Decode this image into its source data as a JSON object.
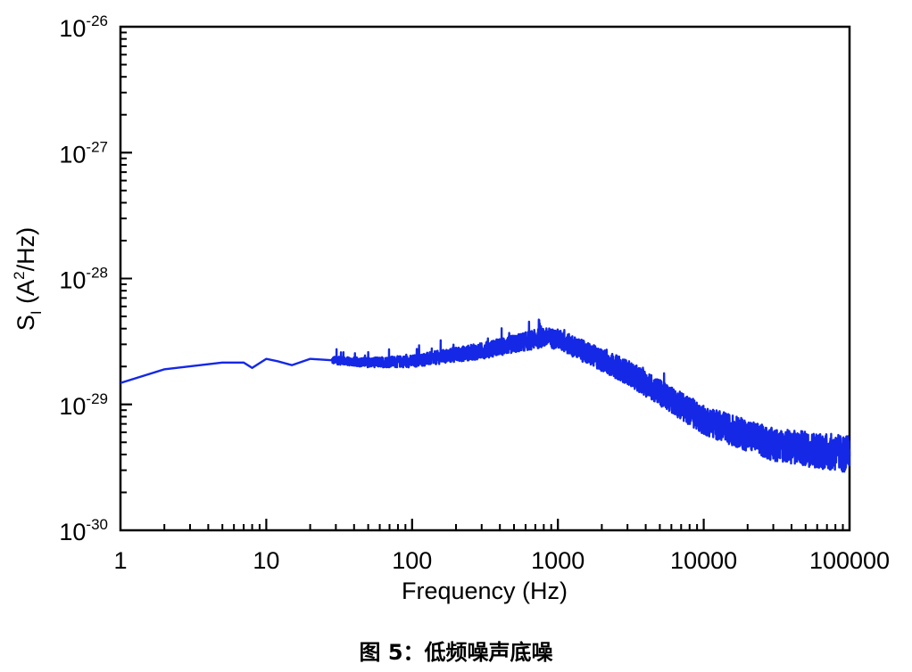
{
  "chart_data": {
    "type": "line",
    "xlabel": "Frequency (Hz)",
    "ylabel": {
      "main": "S",
      "sub": "I",
      "unit_pre": " (A",
      "unit_sup": "2",
      "unit_post": "/Hz)"
    },
    "x_scale": "log",
    "y_scale": "log",
    "xlim": [
      1,
      100000
    ],
    "ylim": [
      1e-30,
      1e-26
    ],
    "x_ticks": [
      {
        "value": 1,
        "label": "1"
      },
      {
        "value": 10,
        "label": "10"
      },
      {
        "value": 100,
        "label": "100"
      },
      {
        "value": 1000,
        "label": "1000"
      },
      {
        "value": 10000,
        "label": "10000"
      },
      {
        "value": 100000,
        "label": "100000"
      }
    ],
    "y_ticks": [
      {
        "value": 1e-26,
        "base": "10",
        "exp": "-26"
      },
      {
        "value": 1e-27,
        "base": "10",
        "exp": "-27"
      },
      {
        "value": 1e-28,
        "base": "10",
        "exp": "-28"
      },
      {
        "value": 1e-29,
        "base": "10",
        "exp": "-29"
      },
      {
        "value": 1e-30,
        "base": "10",
        "exp": "-30"
      }
    ],
    "grid": false,
    "line_color": "#1428e6",
    "series": [
      {
        "x": [
          1,
          2,
          5,
          7,
          8,
          10,
          12,
          15,
          20,
          50,
          100,
          300,
          800,
          1000,
          3000,
          10000,
          30000,
          100000
        ],
        "y": [
          1.48e-29,
          1.9e-29,
          2.15e-29,
          2.15e-29,
          1.95e-29,
          2.3e-29,
          2.2e-29,
          2.05e-29,
          2.3e-29,
          2.15e-29,
          2.2e-29,
          2.66e-29,
          3.4e-29,
          3.3e-29,
          1.8e-29,
          7.5e-30,
          4.8e-30,
          4e-30
        ]
      }
    ]
  },
  "caption": "图 5：低频噪声底噪"
}
